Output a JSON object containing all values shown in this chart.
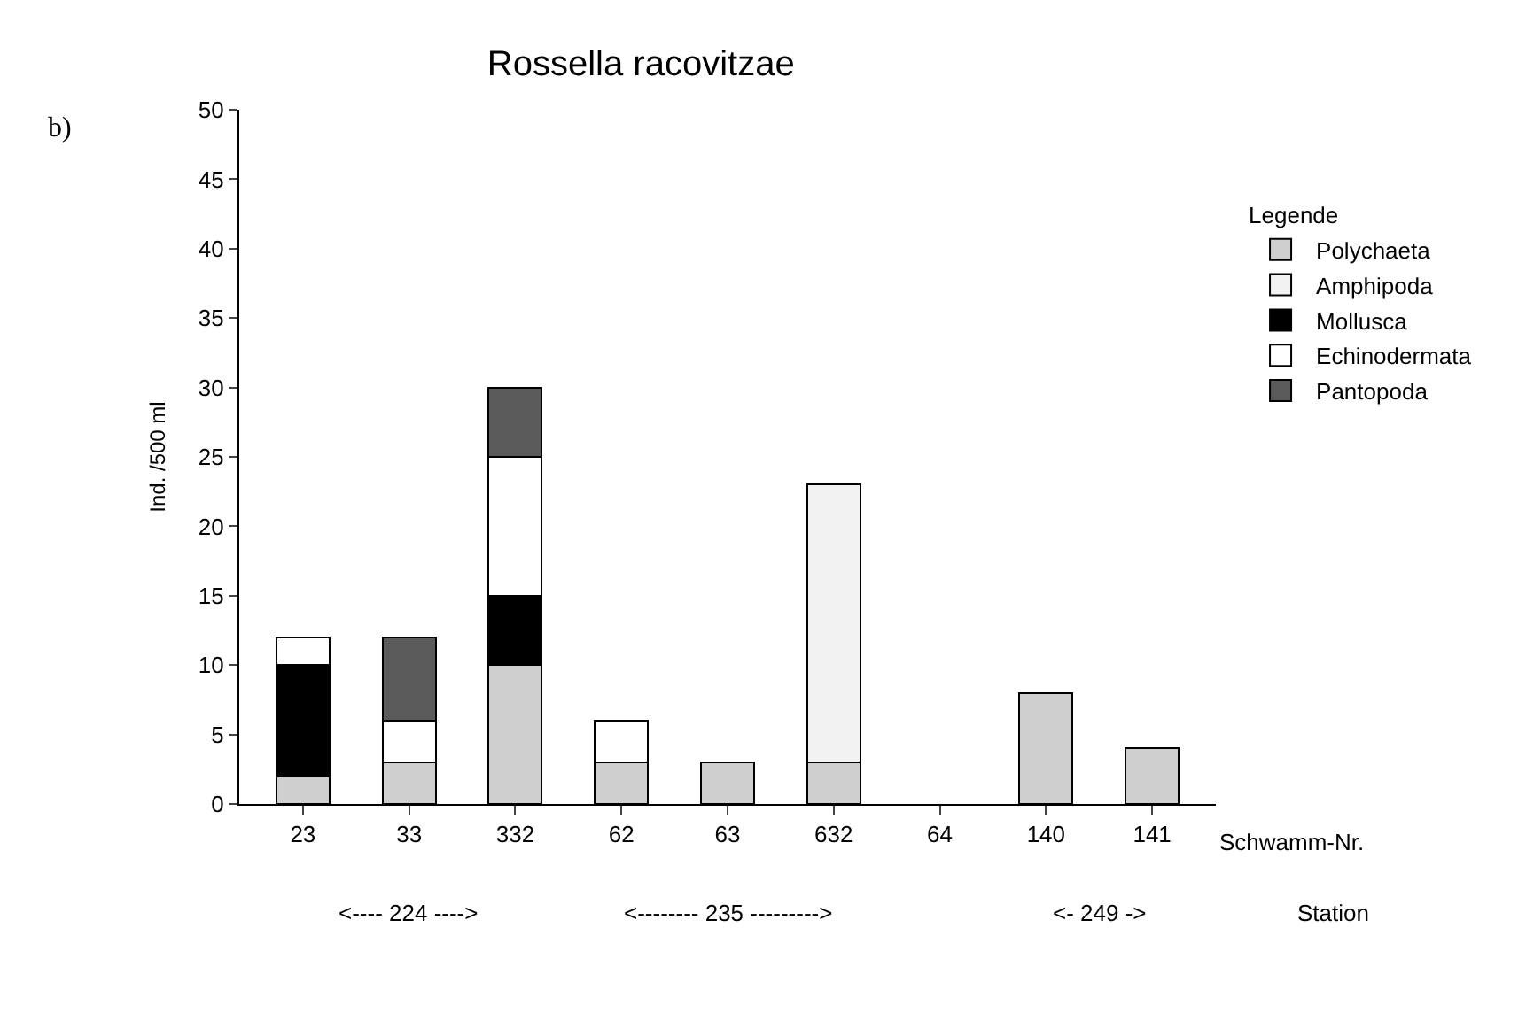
{
  "chart_data": {
    "type": "bar",
    "title": "Rossella racovitzae",
    "ylabel": "Ind. /500 ml",
    "legend_title": "Legende",
    "stacked": true,
    "legend": "right",
    "categories": [
      "23",
      "33",
      "332",
      "62",
      "63",
      "632",
      "64",
      "140",
      "141"
    ],
    "ylim": [
      0,
      50
    ],
    "yticks": [
      0,
      5,
      10,
      15,
      20,
      25,
      30,
      35,
      40,
      45,
      50
    ],
    "series": [
      {
        "name": "Polychaeta",
        "color": "#cfcfcf",
        "values": [
          2,
          3,
          10,
          3,
          3,
          3,
          null,
          8,
          4
        ]
      },
      {
        "name": "Amphipoda",
        "color": "#f2f2f2",
        "values": [
          null,
          null,
          null,
          null,
          null,
          20,
          null,
          null,
          null
        ]
      },
      {
        "name": "Mollusca",
        "color": "#000000",
        "values": [
          8,
          null,
          5,
          null,
          null,
          null,
          null,
          null,
          null
        ]
      },
      {
        "name": "Echinodermata",
        "color": "#ffffff",
        "values": [
          2,
          3,
          10,
          3,
          null,
          null,
          null,
          null,
          null
        ]
      },
      {
        "name": "Pantopoda",
        "color": "#5a5a5a",
        "values": [
          null,
          6,
          5,
          null,
          null,
          null,
          null,
          null,
          null
        ]
      }
    ],
    "annotations": [
      "b)",
      "Schwamm-Nr.",
      "<---- 224 ---->",
      "<-------- 235 --------->",
      "<- 249 ->",
      "Station"
    ]
  }
}
